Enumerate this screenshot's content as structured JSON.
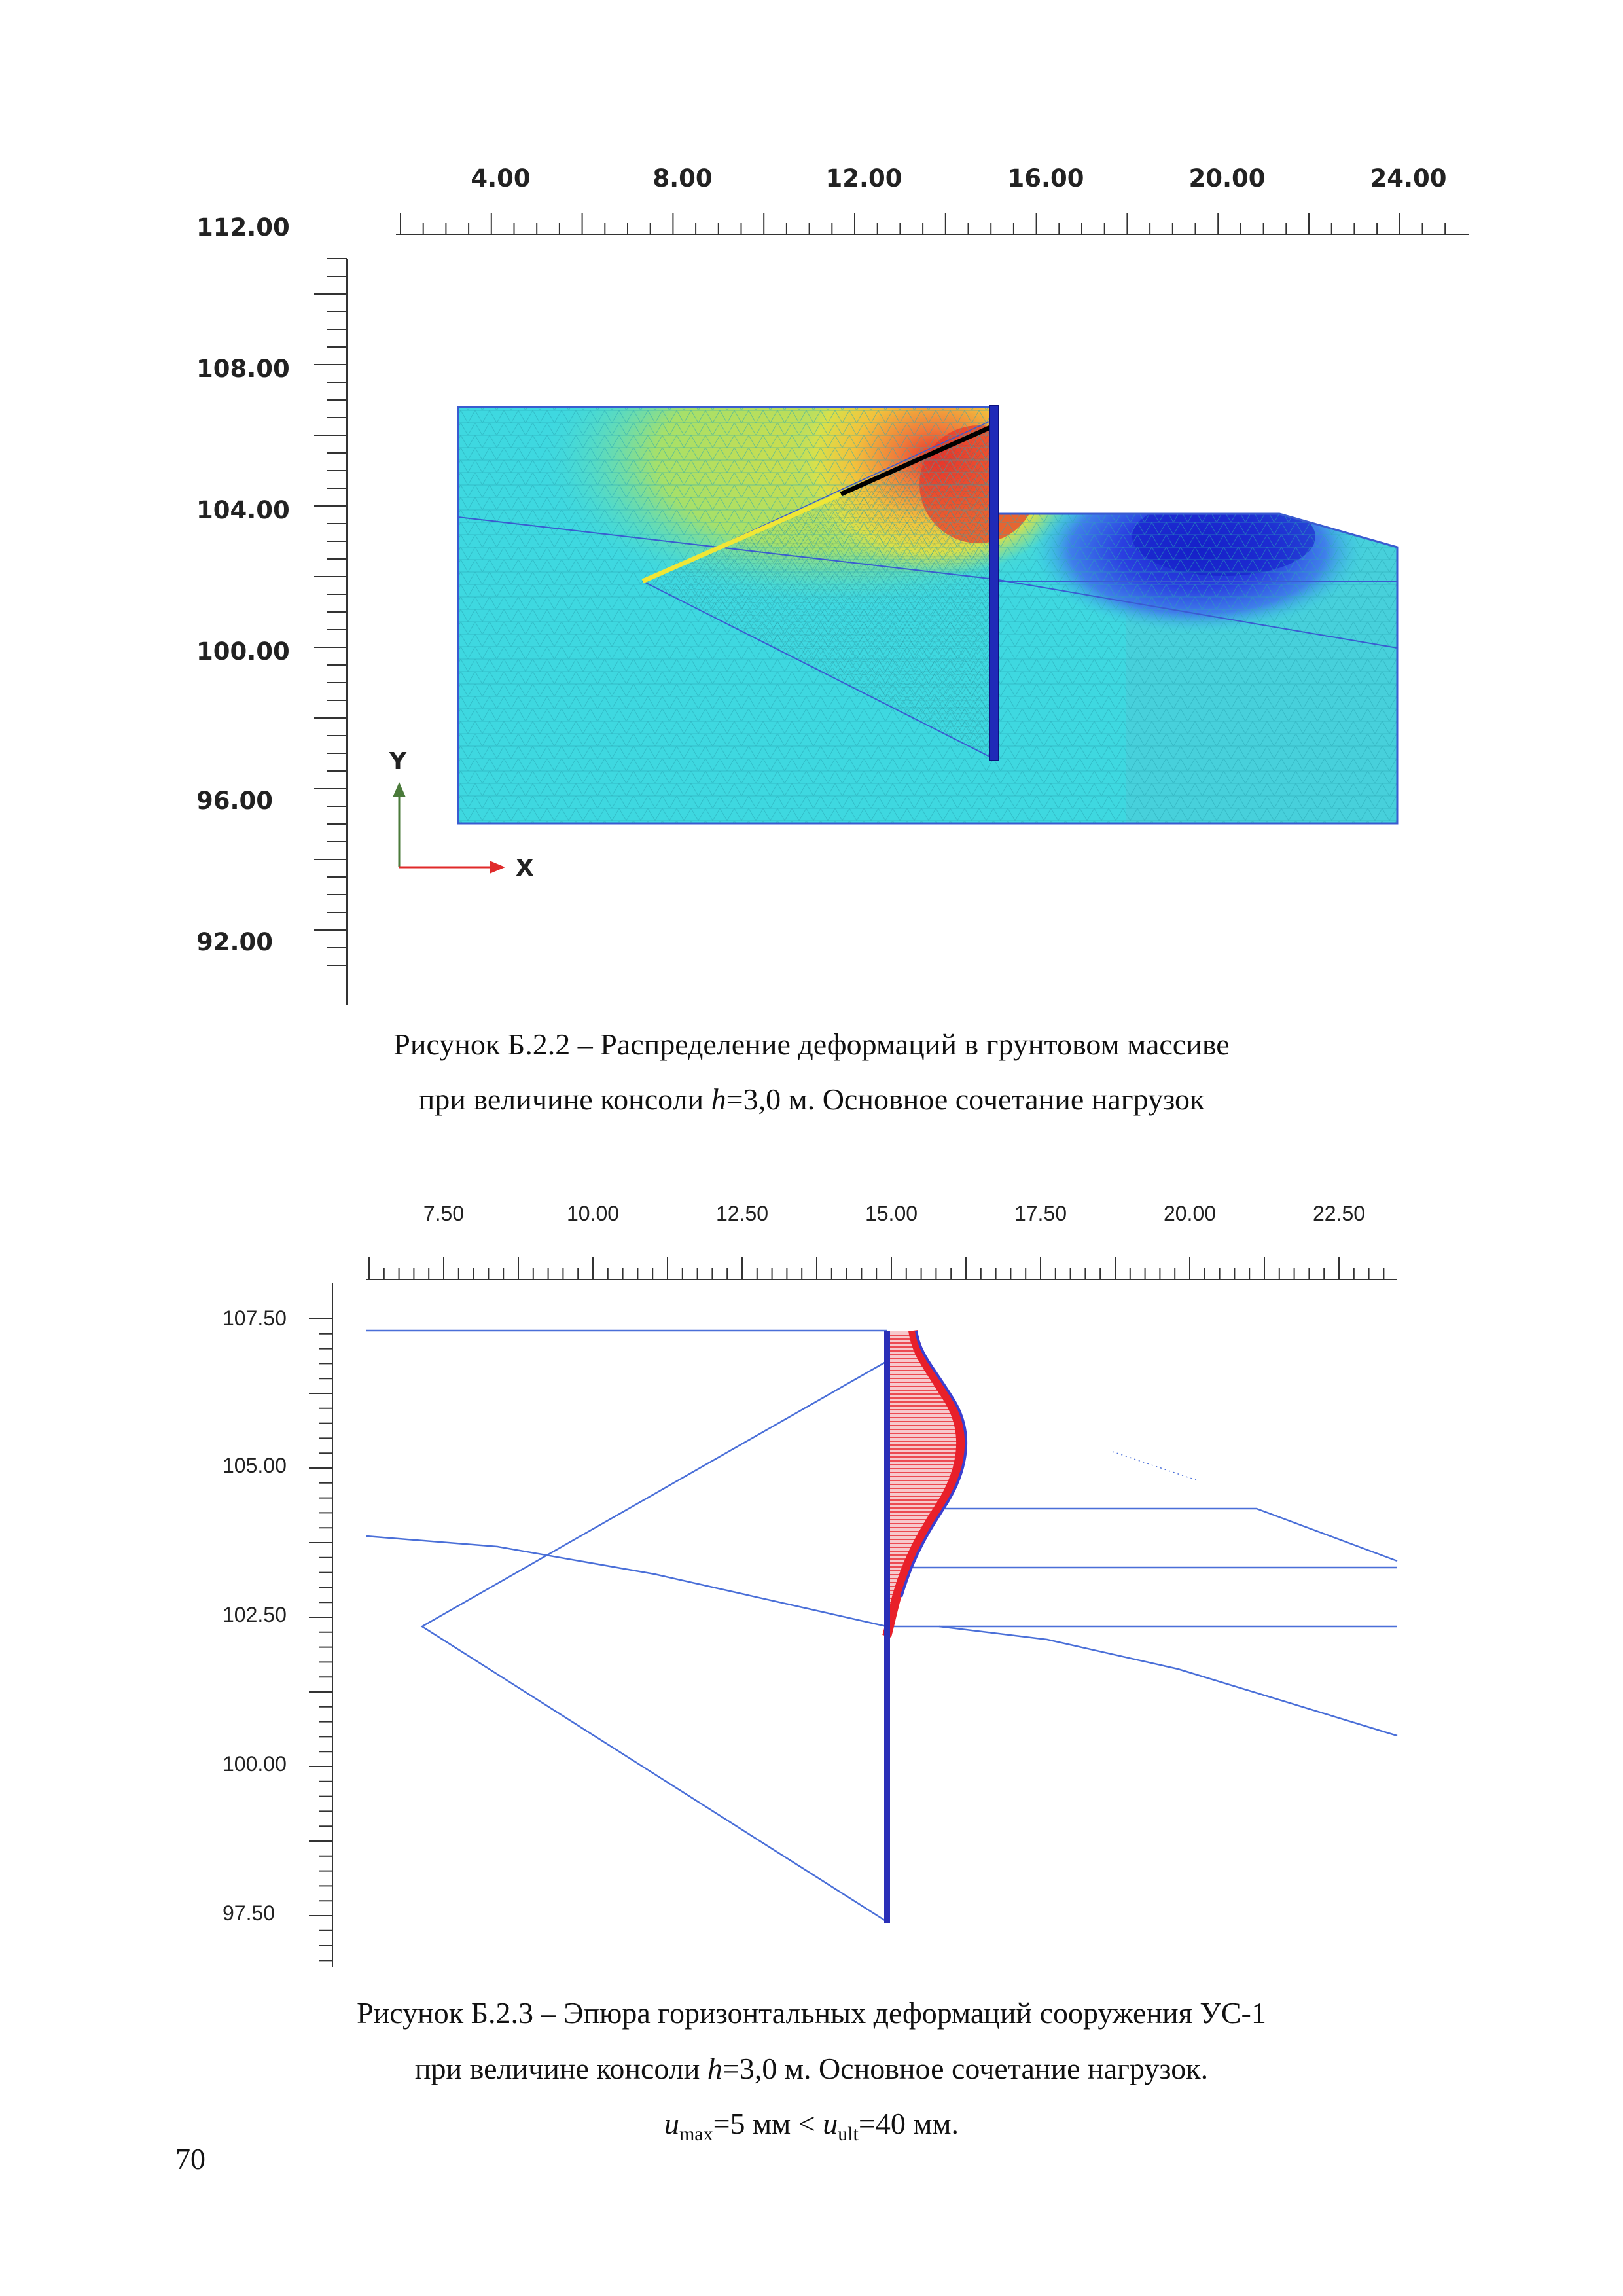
{
  "figure1": {
    "x_ticks": [
      "4.00",
      "8.00",
      "12.00",
      "16.00",
      "20.00",
      "24.00"
    ],
    "y_ticks": [
      "112.00",
      "108.00",
      "104.00",
      "100.00",
      "96.00",
      "92.00"
    ],
    "axis_y_label": "Y",
    "axis_x_label": "X",
    "caption_line1": "Рисунок Б.2.2 – Распределение деформаций в грунтовом массиве",
    "caption_line2_pre": "при величине консоли ",
    "caption_line2_var": "h",
    "caption_line2_post": "=3,0 м. Основное сочетание нагрузок"
  },
  "figure2": {
    "x_ticks": [
      "7.50",
      "10.00",
      "12.50",
      "15.00",
      "17.50",
      "20.00",
      "22.50"
    ],
    "y_ticks": [
      "107.50",
      "105.00",
      "102.50",
      "100.00",
      "97.50"
    ],
    "caption_line1": "Рисунок Б.2.3 – Эпюра горизонтальных деформаций сооружения УС-1",
    "caption_line2_pre": "при величине консоли ",
    "caption_line2_var": "h",
    "caption_line2_post": "=3,0 м. Основное сочетание нагрузок.",
    "caption_line3_u": "u",
    "caption_line3_sub1": "max",
    "caption_line3_mid": "=5 мм < ",
    "caption_line3_u2": "u",
    "caption_line3_sub2": "ult",
    "caption_line3_post": "=40 мм."
  },
  "page_number": "70",
  "colors": {
    "mesh_base": "#3ed8e0",
    "deformation_high": "#e8332a",
    "deformation_mid": "#f2d83a",
    "deformation_negative": "#1a2fd0",
    "wall": "#1f2ab8",
    "anchor_free": "#f0e636",
    "anchor_bond": "#000000",
    "epure_fill": "#e8202a",
    "boundary_lines": "#4a6fd8"
  }
}
